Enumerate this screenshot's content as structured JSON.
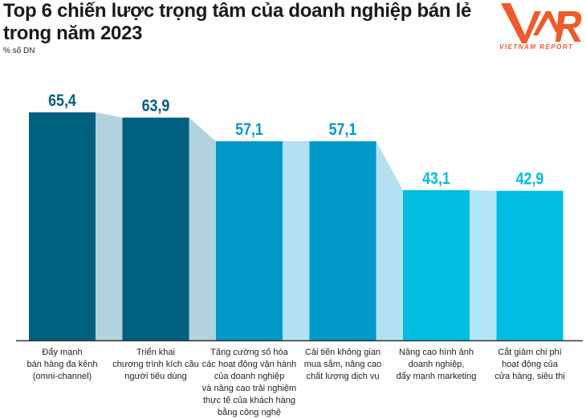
{
  "title": "Top 6 chiến lược trọng tâm của doanh nghiệp bán lẻ trong năm 2023",
  "unit": "% số DN",
  "logo": {
    "text": "VNR",
    "subtitle": "VIETNAM REPORT",
    "color": "#ef5a2a"
  },
  "chart_data": {
    "type": "bar",
    "title": "Top 6 chiến lược trọng tâm của doanh nghiệp bán lẻ trong năm 2023",
    "ylabel": "% số DN",
    "ylim": [
      0,
      65.4
    ],
    "grid": false,
    "categories": [
      "Đẩy mạnh\nbán hàng đa kênh\n(omni-channel)",
      "Triển khai\nchương trình kích cầu\nngười tiêu dùng",
      "Tăng cường số hóa\ncác hoạt động vận hành\ncủa doanh nghiệp\nvà nâng cao trải nghiệm\nthực tế của khách hàng\nbằng công nghệ",
      "Cải tiến không gian\nmua sắm, nâng cao\nchất lượng dịch vụ",
      "Nâng cao hình ảnh\ndoanh nghiệp,\nđẩy mạnh marketing",
      "Cắt giảm chi phí\nhoạt động của\ncửa hàng, siêu thị"
    ],
    "values": [
      65.4,
      63.9,
      57.1,
      57.1,
      43.1,
      42.9
    ],
    "value_labels": [
      "65,4",
      "63,9",
      "57,1",
      "57,1",
      "43,1",
      "42,9"
    ],
    "colors": [
      "#00607f",
      "#00607f",
      "#0099c9",
      "#0099c9",
      "#00bde2",
      "#00bde2"
    ],
    "connector_colors": [
      "#b2d2de",
      "#b2d2de",
      "#b3e1f1",
      "#b3e1f1",
      "#b3e6f4"
    ]
  }
}
